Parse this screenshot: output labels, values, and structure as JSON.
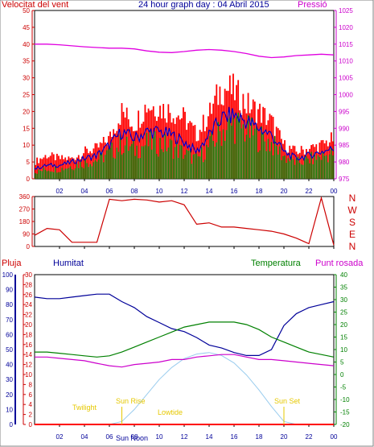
{
  "header": {
    "wind_speed_label": "Velocitat del vent",
    "title": "24 hour graph day : 04 Abril 2015",
    "pressure_label": "Pressió"
  },
  "lower_header": {
    "rain_label": "Pluja",
    "humidity_label": "Humitat",
    "temperature_label": "Temperatura",
    "dewpoint_label": "Punt rosada"
  },
  "annotations": {
    "twilight_am": "Twilight",
    "sunrise": "Sun Rise",
    "sun_noon": "Sun Noon",
    "lowtide": "Lowtide",
    "sunset": "Sun Set"
  },
  "colors": {
    "wind_gust": "#ff0000",
    "wind_avg": "#008000",
    "wind_mean": "#0000cc",
    "pressure": "#e000e0",
    "direction": "#cc0000",
    "humidity": "#000099",
    "temperature": "#008000",
    "dewpoint": "#cc00cc",
    "solar": "#99ccee",
    "rain": "#ff0000",
    "annotation": "#e6c800",
    "axis_left_red": "#cc0000",
    "axis_right_magenta": "#cc00cc",
    "axis_left_blue": "#000099",
    "axis_right_green": "#008000"
  },
  "chart_data": [
    {
      "type": "line",
      "title": "24 hour graph day : 04 Abril 2015",
      "x_ticks": [
        "02",
        "04",
        "06",
        "08",
        "10",
        "12",
        "14",
        "16",
        "18",
        "20",
        "22",
        "00"
      ],
      "ylim": [
        0,
        50
      ],
      "y_ticks": [
        "0",
        "5",
        "10",
        "15",
        "20",
        "25",
        "30",
        "35",
        "40",
        "45",
        "50"
      ],
      "y2lim": [
        975,
        1025
      ],
      "y2_ticks": [
        "975",
        "980",
        "985",
        "990",
        "995",
        "1000",
        "1005",
        "1010",
        "1015",
        "1020",
        "1025"
      ],
      "x_hours": [
        0,
        1,
        2,
        3,
        4,
        5,
        6,
        7,
        8,
        9,
        10,
        11,
        12,
        13,
        14,
        15,
        16,
        17,
        18,
        19,
        20,
        21,
        22,
        23,
        24
      ],
      "series": [
        {
          "name": "Velocitat del vent",
          "axis": "left",
          "style": "gust",
          "values": [
            5,
            7,
            6,
            6,
            8,
            9,
            12,
            20,
            16,
            22,
            21,
            20,
            18,
            13,
            19,
            27,
            26,
            22,
            20,
            17,
            10,
            8,
            9,
            10,
            12
          ]
        },
        {
          "name": "Velocitat del vent",
          "axis": "left",
          "style": "avg",
          "values": [
            2,
            3,
            3,
            4,
            5,
            6,
            8,
            11,
            9,
            11,
            11,
            10,
            8,
            6,
            10,
            15,
            17,
            15,
            13,
            11,
            7,
            5,
            6,
            7,
            8
          ]
        },
        {
          "name": "Velocitat del vent",
          "axis": "left",
          "style": "mean",
          "values": [
            3,
            4,
            4,
            5,
            6,
            7,
            10,
            14,
            12,
            14,
            14,
            13,
            11,
            8,
            13,
            18,
            19,
            17,
            15,
            13,
            8,
            6,
            7,
            8,
            9
          ]
        },
        {
          "name": "Pressió",
          "axis": "right",
          "values": [
            1015,
            1015,
            1014.8,
            1014.5,
            1014.2,
            1014,
            1013.8,
            1013.8,
            1013.6,
            1013,
            1012.6,
            1012.5,
            1012.8,
            1013.2,
            1013.4,
            1013.2,
            1012.8,
            1012.2,
            1011.4,
            1011,
            1011.2,
            1011.6,
            1011.8,
            1012,
            1011.8
          ]
        }
      ]
    },
    {
      "type": "line",
      "x_ticks": [
        "02",
        "04",
        "06",
        "08",
        "10",
        "12",
        "14",
        "16",
        "18",
        "20",
        "22",
        "00"
      ],
      "ylim": [
        0,
        360
      ],
      "y_ticks": [
        "0",
        "90",
        "180",
        "270",
        "360"
      ],
      "y2_labels": [
        "N",
        "W",
        "S",
        "E",
        "N"
      ],
      "x_hours": [
        0,
        1,
        2,
        3,
        4,
        5,
        6,
        7,
        8,
        9,
        10,
        11,
        12,
        13,
        14,
        15,
        16,
        17,
        18,
        19,
        20,
        21,
        22,
        23,
        24
      ],
      "series": [
        {
          "name": "Direcció",
          "axis": "left",
          "values": [
            80,
            130,
            120,
            30,
            30,
            30,
            340,
            330,
            340,
            335,
            320,
            330,
            300,
            160,
            170,
            140,
            140,
            130,
            120,
            110,
            90,
            60,
            20,
            350,
            10
          ]
        }
      ]
    },
    {
      "type": "line",
      "x_ticks": [
        "02",
        "04",
        "06",
        "08",
        "10",
        "12",
        "14",
        "16",
        "18",
        "20",
        "22",
        "00"
      ],
      "ylim_rain": [
        0,
        30
      ],
      "y_rain_ticks": [
        "0",
        "2",
        "4",
        "6",
        "8",
        "10",
        "12",
        "14",
        "16",
        "18",
        "20",
        "22",
        "24",
        "26",
        "28",
        "30"
      ],
      "ylim_humidity": [
        0,
        100
      ],
      "y_humidity_ticks": [
        "0",
        "10",
        "20",
        "30",
        "40",
        "50",
        "60",
        "70",
        "80",
        "90",
        "100"
      ],
      "ylim_temperature": [
        -20,
        40
      ],
      "y_temperature_ticks": [
        "-20",
        "-15",
        "-10",
        "-5",
        "0",
        "5",
        "10",
        "15",
        "20",
        "25",
        "30",
        "35",
        "40"
      ],
      "x_hours": [
        0,
        1,
        2,
        3,
        4,
        5,
        6,
        7,
        8,
        9,
        10,
        11,
        12,
        13,
        14,
        15,
        16,
        17,
        18,
        19,
        20,
        21,
        22,
        23,
        24
      ],
      "series": [
        {
          "name": "Humitat",
          "axis": "humidity",
          "values": [
            85,
            84,
            84,
            85,
            86,
            87,
            87,
            82,
            78,
            72,
            68,
            64,
            62,
            58,
            53,
            51,
            48,
            46,
            46,
            50,
            66,
            74,
            78,
            80,
            82
          ]
        },
        {
          "name": "Temperatura",
          "axis": "temperature",
          "values": [
            9,
            9,
            8.5,
            8,
            7.5,
            7,
            7.5,
            9,
            11,
            13,
            15,
            17,
            19,
            20,
            21,
            21,
            21,
            20,
            18,
            15,
            13,
            11,
            9,
            8,
            7
          ]
        },
        {
          "name": "Punt rosada",
          "axis": "temperature",
          "values": [
            7,
            7,
            6.5,
            6,
            5.5,
            4.5,
            3.5,
            3,
            4,
            4.5,
            5,
            6,
            6,
            7,
            7.5,
            8,
            8,
            7,
            6,
            6,
            5.5,
            5,
            4.5,
            4,
            3.5
          ]
        },
        {
          "name": "Solar",
          "axis": "humidity",
          "values": [
            0,
            0,
            0,
            0,
            0,
            0,
            0,
            2,
            10,
            20,
            30,
            38,
            44,
            47,
            48,
            46,
            41,
            33,
            23,
            12,
            2,
            0,
            0,
            0,
            0
          ]
        },
        {
          "name": "Pluja",
          "axis": "rain",
          "values": [
            0,
            0,
            0,
            0,
            0,
            0,
            0,
            0,
            0,
            0,
            0,
            0,
            0,
            0,
            0,
            0,
            0,
            0,
            0,
            0,
            0,
            0,
            0,
            0,
            0
          ]
        }
      ]
    }
  ]
}
